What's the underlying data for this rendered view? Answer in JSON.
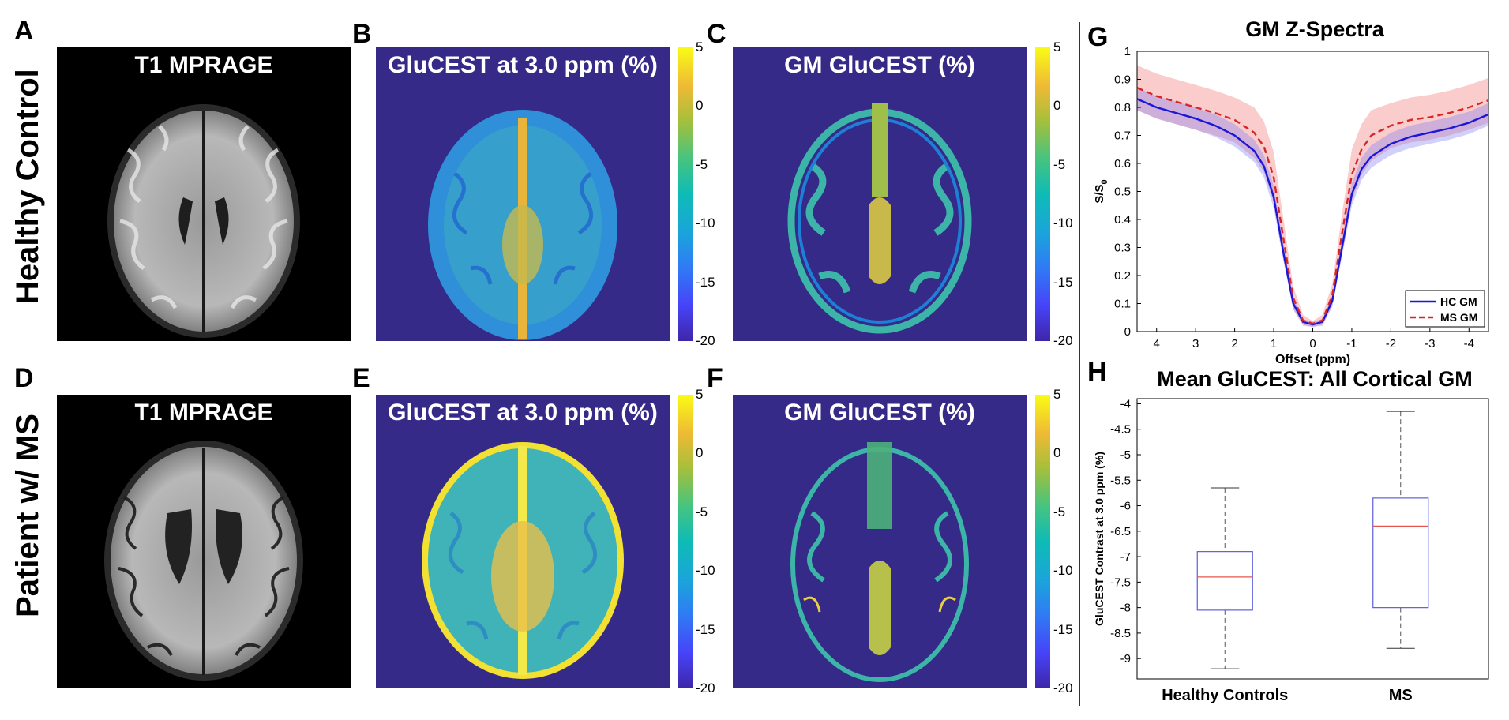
{
  "panels": {
    "A": {
      "letter": "A",
      "title": "T1 MPRAGE"
    },
    "B": {
      "letter": "B",
      "title": "GluCEST at 3.0 ppm (%)"
    },
    "C": {
      "letter": "C",
      "title": "GM GluCEST (%)"
    },
    "D": {
      "letter": "D",
      "title": "T1 MPRAGE"
    },
    "E": {
      "letter": "E",
      "title": "GluCEST at 3.0 ppm (%)"
    },
    "F": {
      "letter": "F",
      "title": "GM GluCEST (%)"
    },
    "G": {
      "letter": "G"
    },
    "H": {
      "letter": "H"
    }
  },
  "row_labels": {
    "top": "Healthy Control",
    "bottom": "Patient w/ MS"
  },
  "colorbar_ticks": [
    "5",
    "0",
    "-5",
    "-10",
    "-15",
    "-20"
  ],
  "colors": {
    "map_background": "#352a87",
    "hc_line": "#1c17d8",
    "ms_line": "#d62728",
    "box": "#5e5edc",
    "median": "#e8544e"
  },
  "chart_data": [
    {
      "type": "line",
      "title": "GM Z-Spectra",
      "xlabel": "Offset (ppm)",
      "ylabel": "S/S",
      "ylabel_sub": "0",
      "x_reversed": true,
      "xlim": [
        4.5,
        -4.5
      ],
      "ylim": [
        0,
        1
      ],
      "xticks": [
        "4",
        "3",
        "2",
        "1",
        "0",
        "-1",
        "-2",
        "-3",
        "-4"
      ],
      "yticks": [
        "0",
        "0.1",
        "0.2",
        "0.3",
        "0.4",
        "0.5",
        "0.6",
        "0.7",
        "0.8",
        "0.9",
        "1"
      ],
      "legend_position": "bottom-right",
      "x": [
        4.5,
        4,
        3.5,
        3,
        2.5,
        2,
        1.5,
        1.25,
        1,
        0.75,
        0.5,
        0.25,
        0,
        -0.25,
        -0.5,
        -0.75,
        -1,
        -1.25,
        -1.5,
        -2,
        -2.5,
        -3,
        -3.5,
        -4,
        -4.5
      ],
      "series": [
        {
          "name": "HC GM",
          "style": "solid",
          "values": [
            0.83,
            0.8,
            0.78,
            0.76,
            0.735,
            0.7,
            0.645,
            0.59,
            0.48,
            0.28,
            0.1,
            0.035,
            0.025,
            0.035,
            0.11,
            0.3,
            0.49,
            0.58,
            0.625,
            0.67,
            0.695,
            0.71,
            0.725,
            0.745,
            0.775
          ],
          "band": [
            0.04,
            0.04,
            0.04,
            0.04,
            0.04,
            0.04,
            0.04,
            0.04,
            0.04,
            0.03,
            0.02,
            0.01,
            0.01,
            0.01,
            0.02,
            0.03,
            0.04,
            0.04,
            0.04,
            0.04,
            0.04,
            0.04,
            0.04,
            0.04,
            0.04
          ]
        },
        {
          "name": "MS GM",
          "style": "dashed",
          "values": [
            0.87,
            0.84,
            0.82,
            0.8,
            0.78,
            0.755,
            0.71,
            0.66,
            0.55,
            0.33,
            0.12,
            0.04,
            0.028,
            0.04,
            0.13,
            0.35,
            0.56,
            0.65,
            0.7,
            0.735,
            0.755,
            0.765,
            0.78,
            0.8,
            0.825
          ],
          "band": [
            0.08,
            0.08,
            0.08,
            0.08,
            0.08,
            0.08,
            0.09,
            0.09,
            0.09,
            0.07,
            0.04,
            0.02,
            0.01,
            0.02,
            0.04,
            0.07,
            0.09,
            0.09,
            0.09,
            0.08,
            0.08,
            0.08,
            0.08,
            0.08,
            0.08
          ]
        }
      ]
    },
    {
      "type": "box",
      "title": "Mean GluCEST: All Cortical GM",
      "ylabel": "GluCEST Contrast at 3.0 ppm (%)",
      "ylim": [
        -9.4,
        -3.9
      ],
      "yticks": [
        "-4",
        "-4.5",
        "-5",
        "-5.5",
        "-6",
        "-6.5",
        "-7",
        "-7.5",
        "-8",
        "-8.5",
        "-9"
      ],
      "categories": [
        "Healthy Controls",
        "MS"
      ],
      "boxes": [
        {
          "name": "Healthy Controls",
          "whisker_low": -9.2,
          "q1": -8.05,
          "median": -7.4,
          "q3": -6.9,
          "whisker_high": -5.65
        },
        {
          "name": "MS",
          "whisker_low": -8.8,
          "q1": -8.0,
          "median": -6.4,
          "q3": -5.85,
          "whisker_high": -4.15
        }
      ]
    }
  ]
}
